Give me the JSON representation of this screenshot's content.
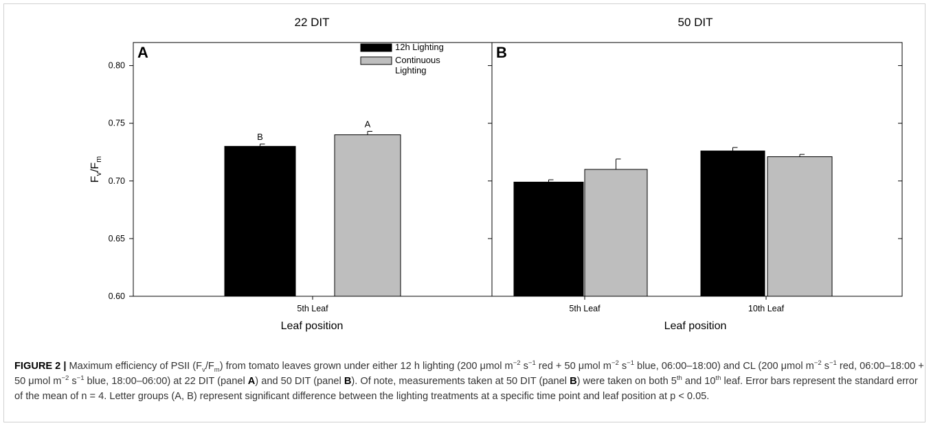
{
  "chart_data": [
    {
      "type": "bar",
      "panel_label": "A",
      "panel_title": "22 DIT",
      "ylabel_main": "F",
      "ylabel_sub1": "v",
      "ylabel_slash": "/F",
      "ylabel_sub2": "m",
      "xlabel": "Leaf position",
      "ylim": [
        0.6,
        0.82
      ],
      "yticks": [
        "0.60",
        "0.65",
        "0.70",
        "0.75",
        "0.80"
      ],
      "categories": [
        "5th Leaf"
      ],
      "series": [
        {
          "name": "12h Lighting",
          "values": [
            0.73
          ],
          "errors": [
            0.002
          ],
          "color": "#000000",
          "sig": [
            "B"
          ]
        },
        {
          "name": "Continuous Lighting",
          "values": [
            0.74
          ],
          "errors": [
            0.003
          ],
          "color": "#bebebe",
          "sig": [
            "A"
          ]
        }
      ],
      "legend": {
        "position": "top-right",
        "entries": [
          {
            "lines": [
              "12h Lighting"
            ],
            "color": "#000000"
          },
          {
            "lines": [
              "Continuous",
              "Lighting"
            ],
            "color": "#bebebe"
          }
        ]
      }
    },
    {
      "type": "bar",
      "panel_label": "B",
      "panel_title": "50 DIT",
      "xlabel": "Leaf position",
      "ylim": [
        0.6,
        0.82
      ],
      "categories": [
        "5th Leaf",
        "10th Leaf"
      ],
      "series": [
        {
          "name": "12h Lighting",
          "values": [
            0.699,
            0.726
          ],
          "errors": [
            0.002,
            0.003
          ],
          "color": "#000000"
        },
        {
          "name": "Continuous Lighting",
          "values": [
            0.71,
            0.721
          ],
          "errors": [
            0.009,
            0.002
          ],
          "color": "#bebebe"
        }
      ]
    }
  ],
  "caption": {
    "label": "FIGURE 2 |",
    "t1": " Maximum efficiency of PSII (F",
    "t1_sub": "v",
    "t2": "/F",
    "t2_sub": "m",
    "t3": ") from tomato leaves grown under either 12 h lighting (200 μmol m",
    "t3_sup": "−2",
    "t4": " s",
    "t4_sup": "−1",
    "t5": " red + 50 μmol m",
    "t5_sup": "−2",
    "t6": " s",
    "t6_sup": "−1",
    "t7": " blue, 06:00–18:00) and CL (200 μmol m",
    "t7_sup": "−2",
    "t8": " s",
    "t8_sup": "−1",
    "t9": " red, 06:00–18:00 + 50 μmol m",
    "t9_sup": "−2",
    "t10": " s",
    "t10_sup": "−1",
    "t11": " blue, 18:00–06:00) at 22 DIT (panel ",
    "t11_bold": "A",
    "t12": ") and 50 DIT (panel ",
    "t12_bold": "B",
    "t13": "). Of note, measurements taken at 50 DIT (panel ",
    "t13_bold": "B",
    "t14": ") were taken on both 5",
    "t14_sup": "th",
    "t15": " and 10",
    "t15_sup": "th",
    "t16": " leaf. Error bars represent the standard error of the mean of n = 4. Letter groups (A, B) represent significant difference between the lighting treatments at a specific time point and leaf position at p < 0.05."
  }
}
